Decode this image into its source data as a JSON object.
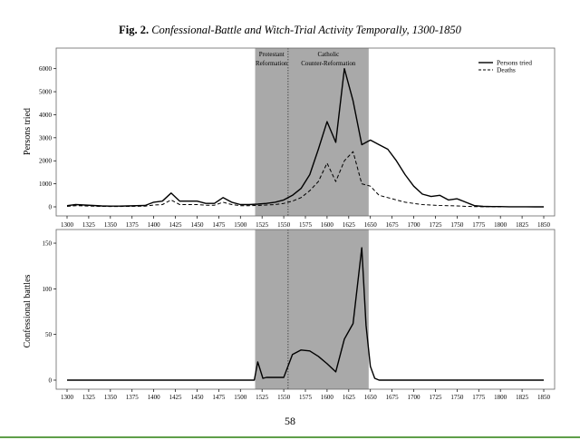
{
  "figure": {
    "title_lead": "Fig. 2.",
    "title_rest": "Confessional-Battle and Witch-Trial Activity Temporally, 1300-1850",
    "page_number": "58"
  },
  "colors": {
    "shade": "#a9a9a9",
    "line": "#000000",
    "frame": "#666666"
  },
  "chart_data": [
    {
      "type": "line",
      "ylabel": "Persons tried",
      "xlabel": "",
      "xlim": [
        1300,
        1850
      ],
      "ylim": [
        0,
        6500
      ],
      "x_ticks": [
        1300,
        1325,
        1350,
        1375,
        1400,
        1425,
        1450,
        1475,
        1500,
        1525,
        1550,
        1575,
        1600,
        1625,
        1650,
        1675,
        1700,
        1725,
        1750,
        1775,
        1800,
        1825,
        1850
      ],
      "y_ticks": [
        0,
        1000,
        2000,
        3000,
        4000,
        5000,
        6000
      ],
      "legend_position": "top-right",
      "shaded_periods": [
        {
          "label_lines": [
            "Protestant",
            "Reformation"
          ],
          "x_start": 1517,
          "x_end": 1555
        },
        {
          "label_lines": [
            "Catholic",
            "Counter-Reformation"
          ],
          "x_start": 1555,
          "x_end": 1648
        }
      ],
      "series": [
        {
          "name": "Persons tried",
          "style": "solid",
          "x": [
            1300,
            1310,
            1320,
            1330,
            1340,
            1350,
            1360,
            1370,
            1380,
            1390,
            1400,
            1410,
            1420,
            1430,
            1440,
            1450,
            1460,
            1470,
            1480,
            1490,
            1500,
            1510,
            1520,
            1530,
            1540,
            1550,
            1560,
            1570,
            1580,
            1590,
            1600,
            1610,
            1620,
            1630,
            1640,
            1650,
            1660,
            1670,
            1680,
            1690,
            1700,
            1710,
            1720,
            1730,
            1740,
            1750,
            1760,
            1770,
            1780,
            1790,
            1800,
            1810,
            1820,
            1830,
            1840,
            1850
          ],
          "values": [
            50,
            100,
            80,
            60,
            40,
            30,
            30,
            40,
            50,
            60,
            200,
            250,
            600,
            250,
            250,
            250,
            150,
            150,
            400,
            200,
            100,
            100,
            120,
            150,
            200,
            300,
            500,
            800,
            1400,
            2500,
            3700,
            2800,
            6000,
            4600,
            2700,
            2900,
            2700,
            2500,
            2000,
            1400,
            900,
            550,
            450,
            500,
            300,
            350,
            200,
            50,
            20,
            10,
            10,
            5,
            5,
            5,
            0,
            0
          ]
        },
        {
          "name": "Deaths",
          "style": "dashed",
          "x": [
            1300,
            1310,
            1320,
            1330,
            1340,
            1350,
            1360,
            1370,
            1380,
            1390,
            1400,
            1410,
            1420,
            1430,
            1440,
            1450,
            1460,
            1470,
            1480,
            1490,
            1500,
            1510,
            1520,
            1530,
            1540,
            1550,
            1560,
            1570,
            1580,
            1590,
            1600,
            1610,
            1620,
            1630,
            1640,
            1650,
            1660,
            1670,
            1680,
            1690,
            1700,
            1710,
            1720,
            1730,
            1740,
            1750,
            1760,
            1770,
            1780,
            1790,
            1800,
            1810,
            1820,
            1830,
            1840,
            1850
          ],
          "values": [
            20,
            50,
            40,
            30,
            20,
            15,
            15,
            20,
            25,
            30,
            80,
            100,
            300,
            100,
            100,
            100,
            70,
            70,
            200,
            100,
            50,
            50,
            60,
            80,
            100,
            150,
            250,
            400,
            700,
            1100,
            1900,
            1100,
            2000,
            2400,
            1000,
            900,
            500,
            400,
            300,
            200,
            150,
            100,
            80,
            60,
            50,
            40,
            20,
            10,
            5,
            5,
            0,
            0,
            0,
            0,
            0,
            0
          ]
        }
      ]
    },
    {
      "type": "line",
      "ylabel": "Confessional battles",
      "xlabel": "",
      "xlim": [
        1300,
        1850
      ],
      "ylim": [
        0,
        155
      ],
      "x_ticks": [
        1300,
        1325,
        1350,
        1375,
        1400,
        1425,
        1450,
        1475,
        1500,
        1525,
        1550,
        1575,
        1600,
        1625,
        1650,
        1675,
        1700,
        1725,
        1750,
        1775,
        1800,
        1825,
        1850
      ],
      "y_ticks": [
        0,
        50,
        100,
        150
      ],
      "shaded_periods": [
        {
          "x_start": 1517,
          "x_end": 1555
        },
        {
          "x_start": 1555,
          "x_end": 1648
        }
      ],
      "series": [
        {
          "style": "solid",
          "x": [
            1300,
            1500,
            1510,
            1516,
            1520,
            1526,
            1530,
            1540,
            1550,
            1560,
            1570,
            1580,
            1590,
            1600,
            1610,
            1620,
            1630,
            1640,
            1645,
            1650,
            1655,
            1660,
            1670,
            1700,
            1750,
            1800,
            1850
          ],
          "values": [
            0,
            0,
            0,
            0,
            20,
            2,
            3,
            3,
            3,
            28,
            33,
            32,
            26,
            18,
            9,
            45,
            62,
            145,
            60,
            15,
            2,
            0,
            0,
            0,
            0,
            0,
            0
          ]
        }
      ]
    }
  ]
}
